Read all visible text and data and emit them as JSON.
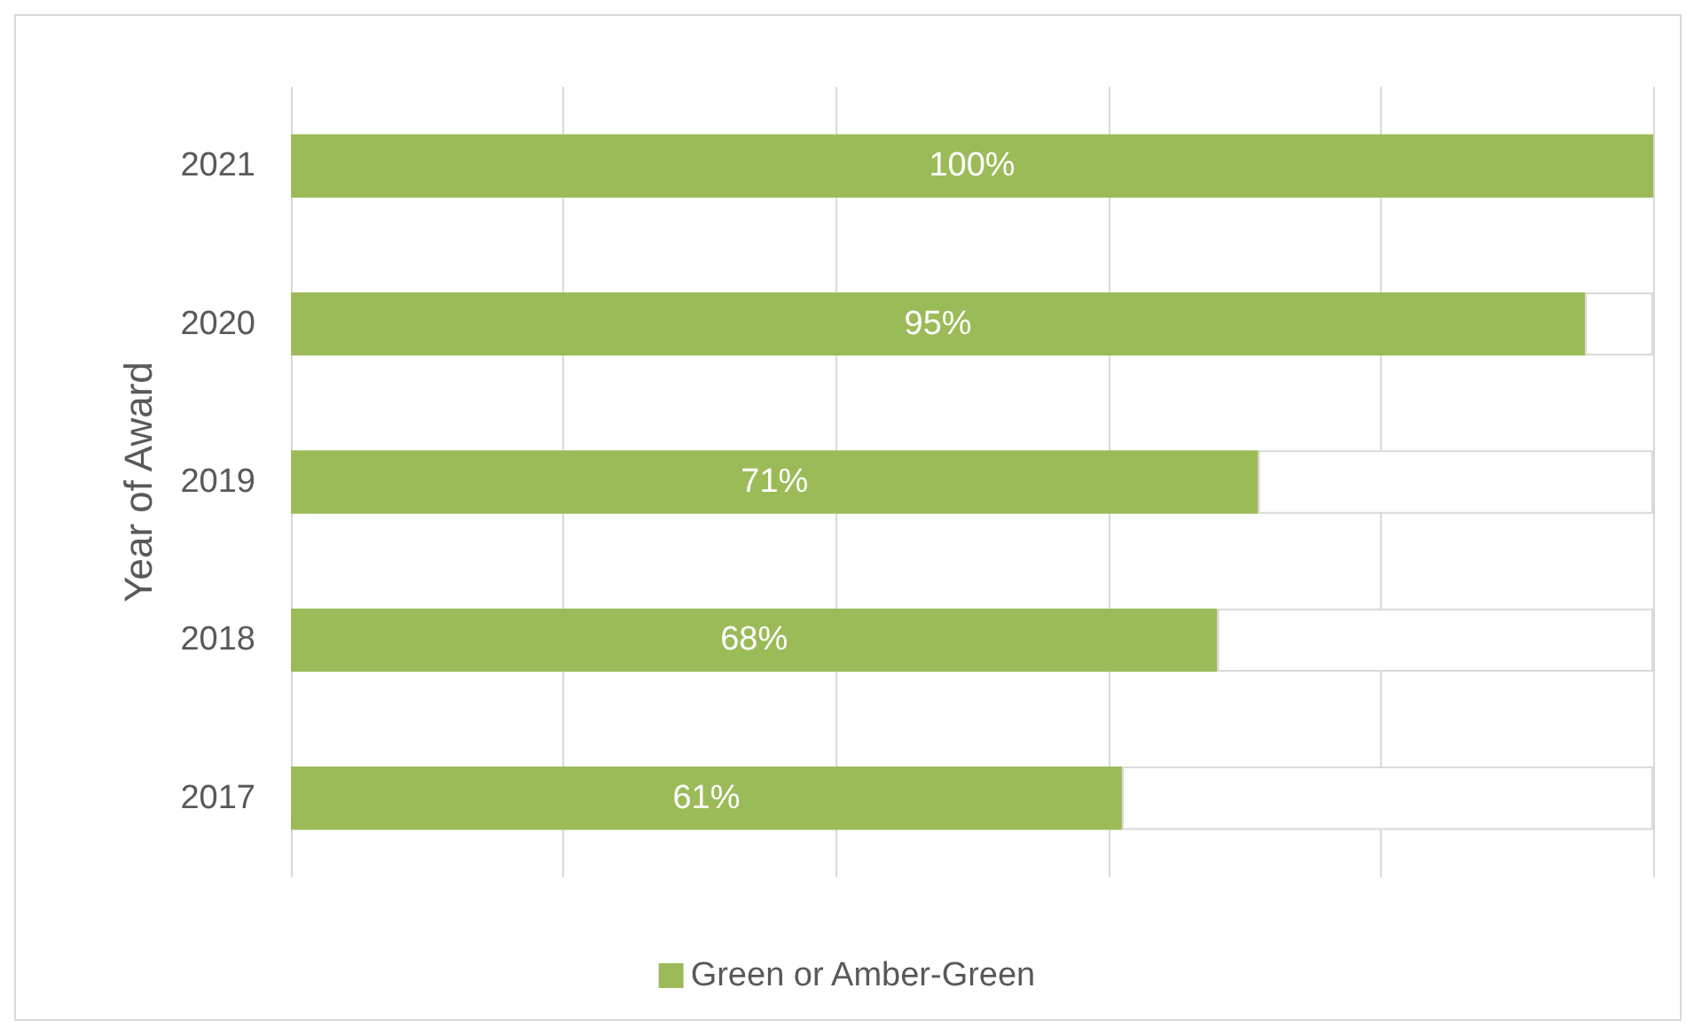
{
  "chart_data": {
    "type": "bar",
    "orientation": "horizontal",
    "stacked": true,
    "ylabel": "Year of Award",
    "categories": [
      "2021",
      "2020",
      "2019",
      "2018",
      "2017"
    ],
    "series": [
      {
        "name": "Green or Amber-Green",
        "color": "#9bbb59",
        "values": [
          100,
          95,
          71,
          68,
          61
        ],
        "value_labels": [
          "100%",
          "95%",
          "71%",
          "68%",
          "61%"
        ]
      },
      {
        "color": "#ffffff",
        "values": [
          0,
          5,
          29,
          32,
          39
        ]
      }
    ],
    "xlim": [
      0,
      100
    ],
    "xticks": [
      {
        "value": 0,
        "label": null
      },
      {
        "value": 20,
        "label": null
      },
      {
        "value": 40,
        "label": null
      },
      {
        "value": 60,
        "label": null
      },
      {
        "value": 80,
        "label": null
      },
      {
        "value": 100,
        "label": null
      }
    ],
    "tick_labels": "y",
    "grid": "x",
    "legend": "bottom"
  }
}
